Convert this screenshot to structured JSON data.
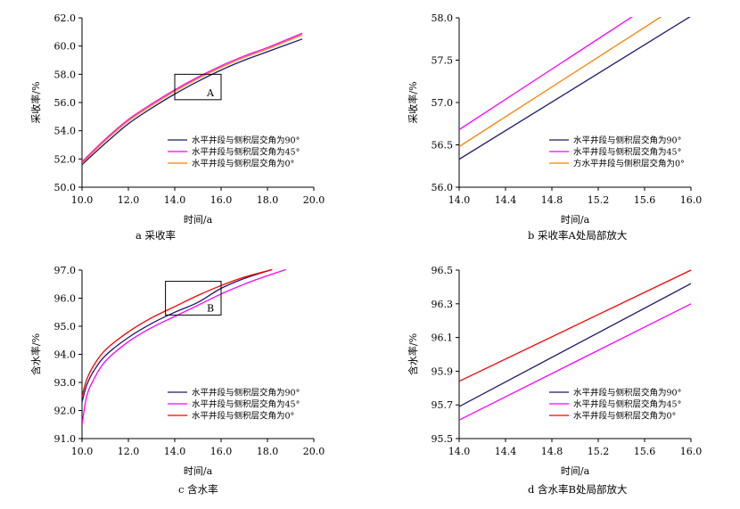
{
  "chart_data": [
    {
      "type": "line",
      "caption": "a  采收率",
      "xlabel": "时间/a",
      "ylabel": "采收率/%",
      "xlim": [
        10,
        20
      ],
      "ylim": [
        50,
        62
      ],
      "xticks": [
        "10.0",
        "12.0",
        "14.0",
        "16.0",
        "18.0",
        "20.0"
      ],
      "yticks": [
        "50.0",
        "52.0",
        "54.0",
        "56.0",
        "58.0",
        "60.0",
        "62.0"
      ],
      "legend_position": "bottom-right",
      "annotation": {
        "label": "A",
        "x_range": [
          14.0,
          16.0
        ],
        "y_range": [
          56.2,
          58.0
        ]
      },
      "series": [
        {
          "name": "水平井段与侧积层交角为90°",
          "color": "#1a1a6e",
          "x": [
            10.0,
            11.0,
            12.0,
            13.0,
            14.0,
            15.0,
            16.0,
            17.0,
            18.0,
            19.5
          ],
          "values": [
            51.6,
            53.1,
            54.5,
            55.6,
            56.6,
            57.5,
            58.3,
            59.0,
            59.6,
            60.5
          ]
        },
        {
          "name": "水平井段与侧积层交角为45°",
          "color": "#ff00ff",
          "x": [
            10.0,
            11.0,
            12.0,
            13.0,
            14.0,
            15.0,
            16.0,
            17.0,
            18.0,
            19.5
          ],
          "values": [
            51.8,
            53.4,
            54.8,
            55.9,
            56.9,
            57.8,
            58.6,
            59.3,
            59.9,
            60.9
          ]
        },
        {
          "name": "水平井段与侧积层交角为0°",
          "color": "#ff8000",
          "x": [
            10.0,
            11.0,
            12.0,
            13.0,
            14.0,
            15.0,
            16.0,
            17.0,
            18.0,
            19.5
          ],
          "values": [
            51.7,
            53.3,
            54.7,
            55.8,
            56.8,
            57.7,
            58.5,
            59.2,
            59.8,
            60.8
          ]
        }
      ]
    },
    {
      "type": "line",
      "caption": "b  采收率A处局部放大",
      "xlabel": "时间/a",
      "ylabel": "采收率/%",
      "xlim": [
        14.0,
        16.0
      ],
      "ylim": [
        56.0,
        58.0
      ],
      "xticks": [
        "14.0",
        "14.4",
        "14.8",
        "15.2",
        "15.6",
        "16.0"
      ],
      "yticks": [
        "56.0",
        "56.5",
        "57.0",
        "57.5",
        "58.0"
      ],
      "legend_position": "bottom-right",
      "series": [
        {
          "name": "水平井段与侧积层交角为90°",
          "color": "#1a1a6e",
          "x": [
            14.0,
            16.0
          ],
          "values": [
            56.33,
            58.02
          ]
        },
        {
          "name": "水平井段与侧积层交角为45°",
          "color": "#ff00ff",
          "x": [
            14.0,
            15.5
          ],
          "values": [
            56.68,
            58.02
          ]
        },
        {
          "name": "方水平井段与侧积层交角为0°",
          "color": "#ff8000",
          "x": [
            14.0,
            15.75
          ],
          "values": [
            56.48,
            58.02
          ]
        }
      ]
    },
    {
      "type": "line",
      "caption": "c  含水率",
      "xlabel": "时间/a",
      "ylabel": "含水率/%",
      "xlim": [
        10,
        20
      ],
      "ylim": [
        91,
        97
      ],
      "xticks": [
        "10.0",
        "12.0",
        "14.0",
        "16.0",
        "18.0",
        "20.0"
      ],
      "yticks": [
        "91.0",
        "92.0",
        "93.0",
        "94.0",
        "95.0",
        "96.0",
        "97.0"
      ],
      "legend_position": "bottom-right",
      "annotation": {
        "label": "B",
        "x_range": [
          13.6,
          16.0
        ],
        "y_range": [
          95.4,
          96.6
        ]
      },
      "series": [
        {
          "name": "水平井段与侧积层交角为90°",
          "color": "#1a1a6e",
          "x": [
            10.0,
            10.2,
            10.5,
            11.0,
            12.0,
            13.0,
            14.0,
            15.0,
            16.0,
            17.0,
            18.2
          ],
          "values": [
            92.3,
            92.9,
            93.4,
            93.95,
            94.6,
            95.1,
            95.5,
            95.85,
            96.35,
            96.7,
            97.02
          ]
        },
        {
          "name": "水平井段与侧积层交角为45°",
          "color": "#ff00ff",
          "x": [
            10.0,
            10.2,
            10.5,
            11.0,
            12.0,
            13.0,
            14.0,
            15.0,
            16.0,
            17.0,
            18.0,
            18.8
          ],
          "values": [
            91.5,
            92.5,
            93.1,
            93.75,
            94.45,
            94.95,
            95.35,
            95.75,
            96.15,
            96.5,
            96.8,
            97.02
          ]
        },
        {
          "name": "水平井段与侧积层交角为0°",
          "color": "#ff0000",
          "x": [
            10.0,
            10.2,
            10.5,
            11.0,
            12.0,
            13.0,
            14.0,
            15.0,
            16.0,
            17.0,
            18.2
          ],
          "values": [
            92.5,
            93.1,
            93.6,
            94.15,
            94.8,
            95.3,
            95.7,
            96.1,
            96.45,
            96.75,
            97.02
          ]
        }
      ]
    },
    {
      "type": "line",
      "caption": "d  含水率B处局部放大",
      "xlabel": "时间/a",
      "ylabel": "含水率/%",
      "xlim": [
        14.0,
        16.0
      ],
      "ylim": [
        95.5,
        96.5
      ],
      "xticks": [
        "14.0",
        "14.4",
        "14.8",
        "15.2",
        "15.6",
        "16.0"
      ],
      "yticks": [
        "95.5",
        "95.7",
        "95.9",
        "96.1",
        "96.3",
        "96.5"
      ],
      "legend_position": "bottom-right",
      "series": [
        {
          "name": "水平井段与侧积层交角为90°",
          "color": "#1a1a6e",
          "x": [
            14.0,
            16.0
          ],
          "values": [
            95.69,
            96.42
          ]
        },
        {
          "name": "水平井段与侧积层交角为45°",
          "color": "#ff00ff",
          "x": [
            14.0,
            16.0
          ],
          "values": [
            95.61,
            96.3
          ]
        },
        {
          "name": "水平井段与侧积层交角为0°",
          "color": "#ff0000",
          "x": [
            14.0,
            16.0
          ],
          "values": [
            95.84,
            96.5
          ]
        }
      ]
    }
  ]
}
